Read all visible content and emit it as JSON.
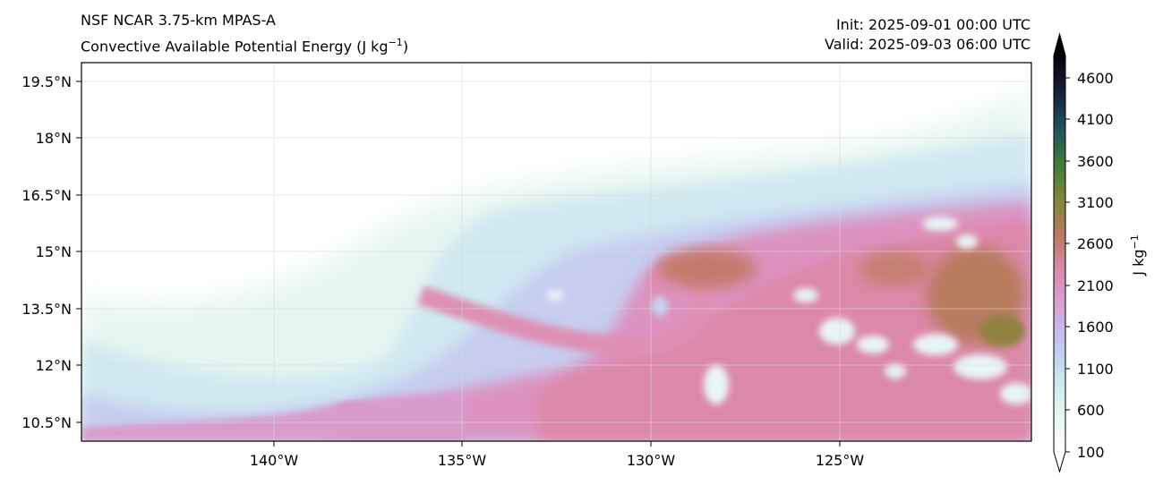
{
  "header": {
    "model": "NSF NCAR 3.75-km MPAS-A",
    "field": "Convective Available Potential Energy (J kg",
    "field_exp": "−1",
    "field_close": ")",
    "init": "Init: 2025-09-01 00:00 UTC",
    "valid": "Valid: 2025-09-03 06:00 UTC"
  },
  "map": {
    "lat_ticks": [
      "19.5°N",
      "18°N",
      "16.5°N",
      "15°N",
      "13.5°N",
      "12°N",
      "10.5°N"
    ],
    "lon_ticks": [
      "140°W",
      "135°W",
      "130°W",
      "125°W"
    ],
    "lat_values": [
      19.5,
      18,
      16.5,
      15,
      13.5,
      12,
      10.5
    ],
    "lon_values": [
      -140,
      -135,
      -130,
      -125
    ]
  },
  "colorbar": {
    "label": "J kg",
    "label_exp": "−1",
    "ticks": [
      "4600",
      "4100",
      "3600",
      "3100",
      "2600",
      "2100",
      "1600",
      "1100",
      "600",
      "100"
    ],
    "tick_values": [
      4600,
      4100,
      3600,
      3100,
      2600,
      2100,
      1600,
      1100,
      600,
      100
    ],
    "extend": "both",
    "colors": [
      "#ffffff",
      "#e4f6f2",
      "#c7e3f0",
      "#bfc3ec",
      "#d9a3d6",
      "#dc8aa8",
      "#b97a60",
      "#7f8a3a",
      "#3d7a3c",
      "#1f3f55",
      "#1a1630",
      "#000000"
    ]
  }
}
